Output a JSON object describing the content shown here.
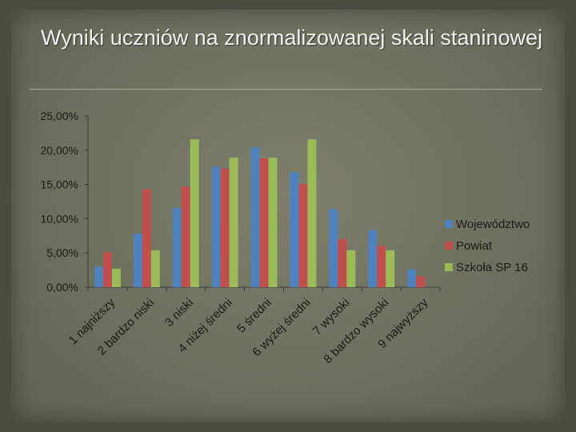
{
  "slide": {
    "title": "Wyniki uczniów na znormalizowanej skali staninowej"
  },
  "colors": {
    "background": "#4a4b41",
    "slide": "#757764"
  },
  "chart_data": {
    "type": "bar",
    "categories": [
      "1 najniższy",
      "2 bardzo niski",
      "3 niski",
      "4 niżej średni",
      "5 średni",
      "6 wyżej średni",
      "7 wysoki",
      "8 bardzo wysoki",
      "9 najwyższy"
    ],
    "series": [
      {
        "name": "Województwo",
        "color": "#4f81bd",
        "values": [
          3.0,
          7.8,
          11.6,
          17.6,
          20.4,
          16.8,
          11.4,
          8.3,
          2.6
        ]
      },
      {
        "name": "Powiat",
        "color": "#c0504d",
        "values": [
          5.1,
          14.3,
          14.7,
          17.3,
          18.8,
          15.1,
          7.0,
          6.0,
          1.6
        ]
      },
      {
        "name": "Szkoła SP 16",
        "color": "#9bbb59",
        "values": [
          2.7,
          5.4,
          21.6,
          18.9,
          18.9,
          21.6,
          5.4,
          5.4,
          0
        ]
      }
    ],
    "ylim": [
      0,
      25
    ],
    "yticks": [
      "0,00%",
      "5,00%",
      "10,00%",
      "15,00%",
      "20,00%",
      "25,00%"
    ],
    "grid": false,
    "legend": "right"
  }
}
